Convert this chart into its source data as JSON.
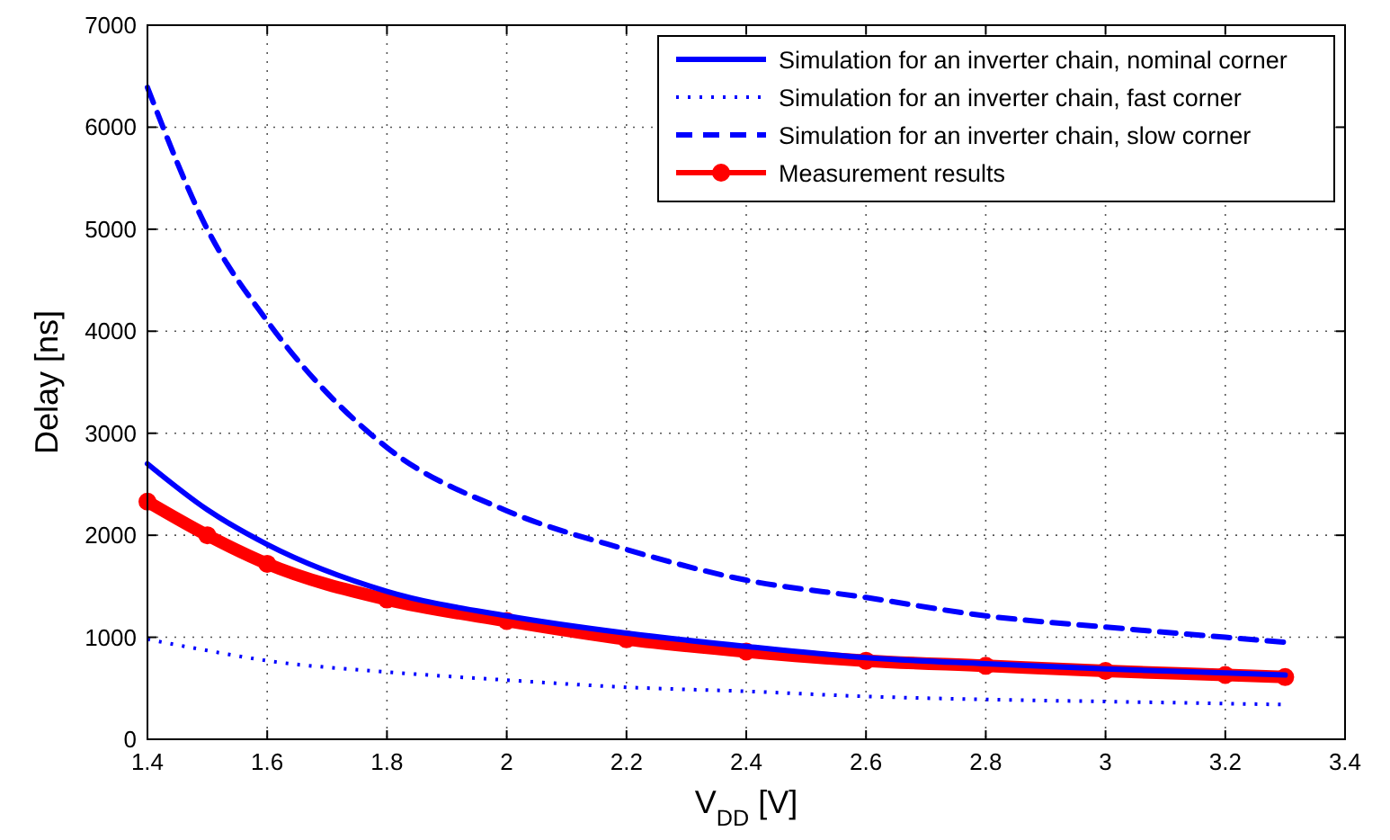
{
  "chart_data": {
    "type": "line",
    "xlabel": "V$_{DD}$ [V]",
    "ylabel": "Delay [ns]",
    "x": [
      1.4,
      1.5,
      1.6,
      1.8,
      2.0,
      2.2,
      2.4,
      2.6,
      2.8,
      3.0,
      3.2,
      3.3
    ],
    "series": [
      {
        "name": "Simulation for an inverter chain, nominal corner",
        "color": "#0000ff",
        "line_style": "solid",
        "values": [
          2700,
          2250,
          1910,
          1450,
          1210,
          1040,
          910,
          800,
          740,
          690,
          650,
          630
        ]
      },
      {
        "name": "Simulation for an inverter chain, fast corner",
        "color": "#0000ff",
        "line_style": "dotted",
        "values": [
          980,
          870,
          770,
          660,
          580,
          510,
          470,
          420,
          390,
          370,
          350,
          340
        ]
      },
      {
        "name": "Simulation for an inverter chain, slow corner",
        "color": "#0000ff",
        "line_style": "dashed",
        "values": [
          6390,
          5000,
          4100,
          2860,
          2240,
          1860,
          1560,
          1390,
          1210,
          1100,
          1000,
          950
        ]
      },
      {
        "name": "Measurement results",
        "color": "#ff0000",
        "line_style": "solid",
        "marker": "circle",
        "values": [
          2330,
          2000,
          1720,
          1370,
          1160,
          980,
          860,
          770,
          720,
          670,
          630,
          610
        ]
      }
    ],
    "xlim": [
      1.4,
      3.4
    ],
    "xticks": [
      1.4,
      1.6,
      1.8,
      2,
      2.2,
      2.4,
      2.6,
      2.8,
      3,
      3.2,
      3.4
    ],
    "ylim": [
      0,
      7000
    ],
    "yticks": [
      0,
      1000,
      2000,
      3000,
      4000,
      5000,
      6000,
      7000
    ],
    "grid": true,
    "legend": "top right"
  }
}
